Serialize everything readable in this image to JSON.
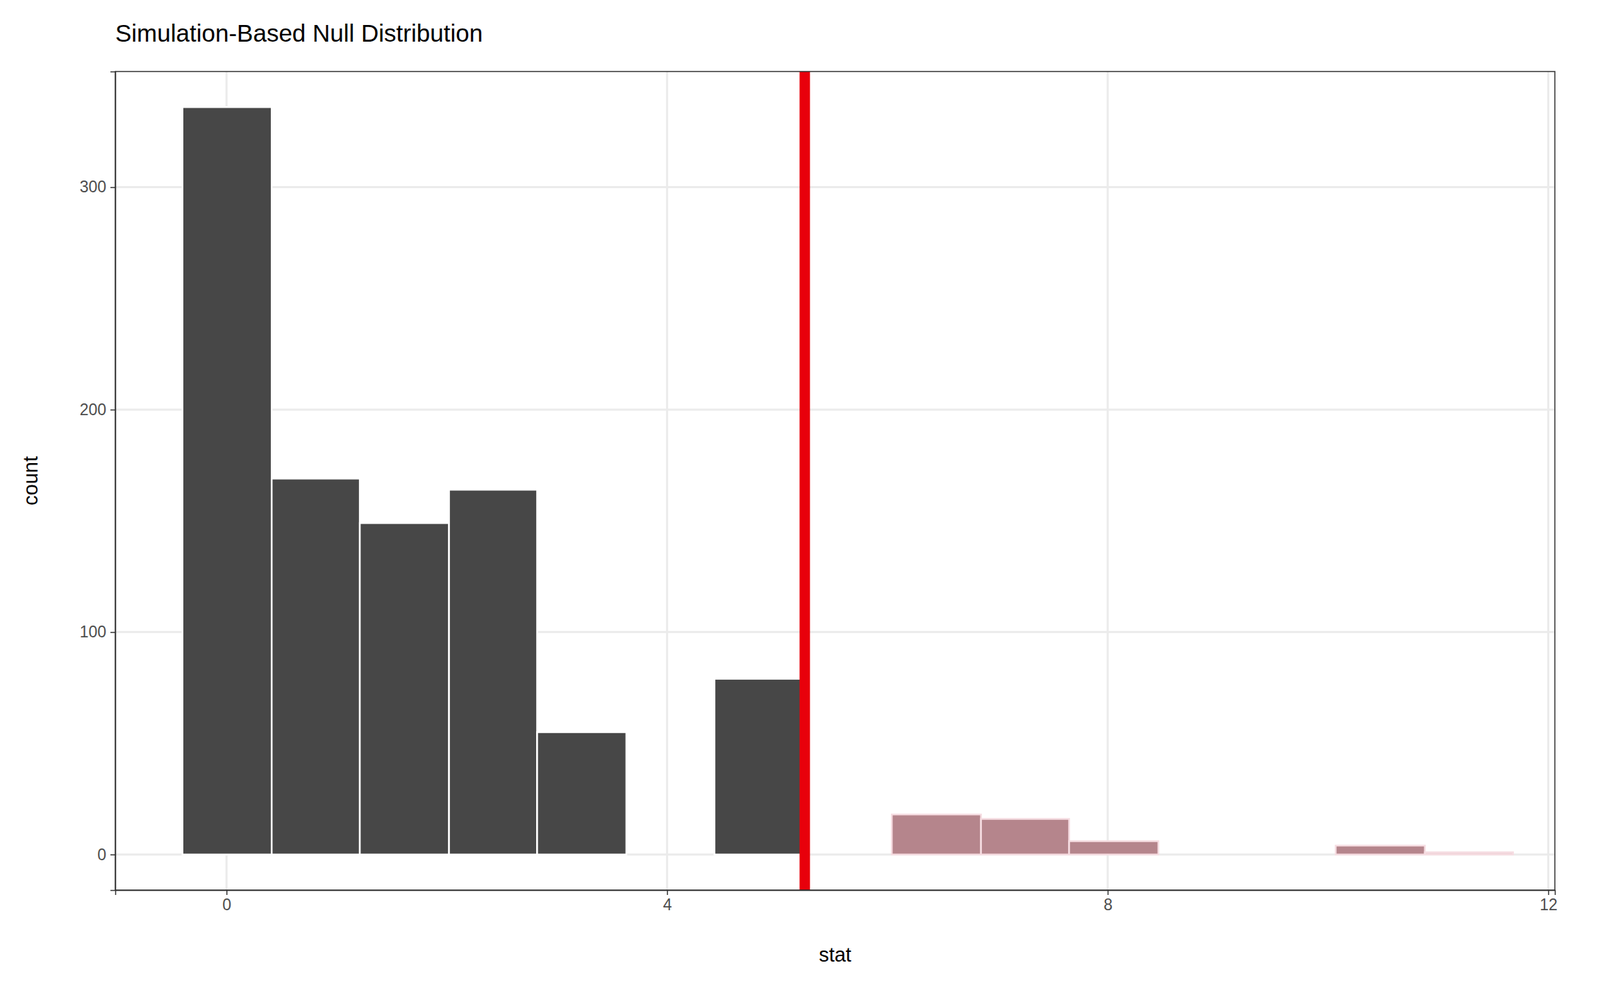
{
  "chart_data": {
    "type": "histogram",
    "title": "Simulation-Based Null Distribution",
    "x_label": "stat",
    "y_label": "count",
    "bins": [
      -0.4,
      0.41,
      1.21,
      2.02,
      2.82,
      3.63,
      4.43,
      5.24,
      6.04,
      6.85,
      7.65,
      8.46,
      9.27,
      10.07,
      10.88,
      11.68
    ],
    "counts": [
      336,
      169,
      149,
      164,
      55,
      0,
      79,
      0,
      18,
      16,
      6,
      0,
      0,
      4,
      1
    ],
    "colors": [
      "#474747",
      "#474747",
      "#474747",
      "#474747",
      "#474747",
      "#474747",
      "#474747",
      "#b5858c",
      "#b5858c",
      "#b5858c",
      "#b5858c",
      "#b5858c",
      "#b5858c",
      "#b5858c",
      "#e9c9ce"
    ],
    "vline": {
      "value": 5.25,
      "color": "#e8000b"
    },
    "xlim": [
      -1.01,
      12.06
    ],
    "ylim": [
      -16,
      352
    ],
    "xticks": [
      0,
      4,
      8,
      12
    ],
    "yticks": [
      0,
      100,
      200,
      300
    ],
    "grid": true
  }
}
